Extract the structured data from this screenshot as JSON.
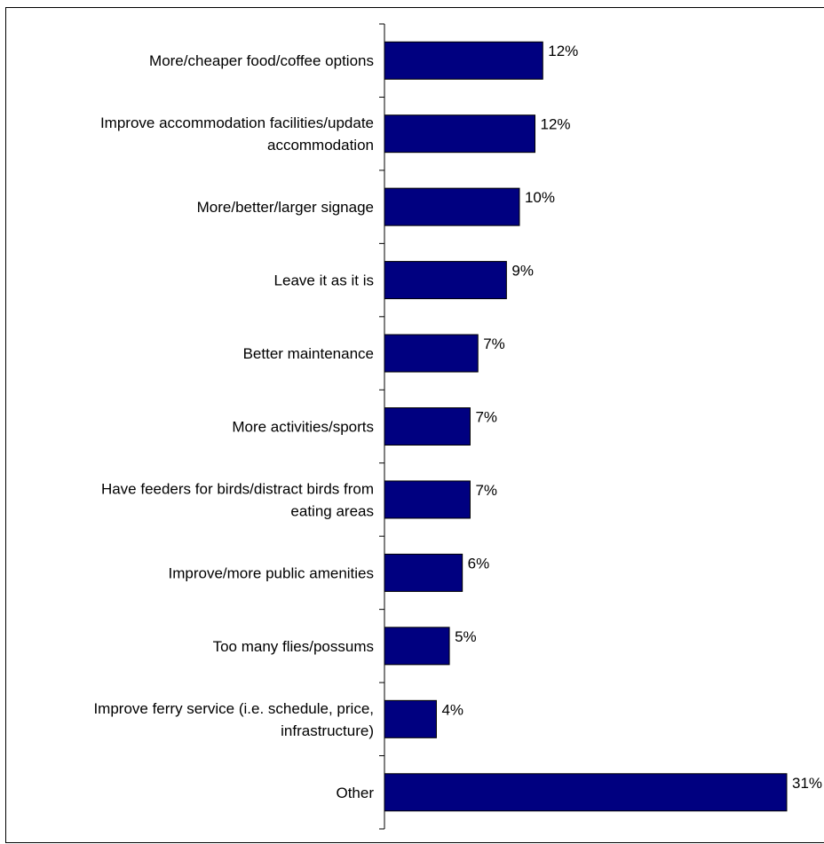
{
  "chart_data": {
    "type": "bar",
    "orientation": "horizontal",
    "categories": [
      [
        "More/cheaper food/coffee options"
      ],
      [
        "Improve accommodation facilities/update",
        "accommodation"
      ],
      [
        "More/better/larger signage"
      ],
      [
        "Leave it as it is"
      ],
      [
        "Better maintenance"
      ],
      [
        "More activities/sports"
      ],
      [
        "Have feeders for birds/distract birds from",
        "eating areas"
      ],
      [
        "Improve/more public amenities"
      ],
      [
        "Too many flies/possums"
      ],
      [
        "Improve ferry service (i.e. schedule, price,",
        "infrastructure)"
      ],
      [
        "Other"
      ]
    ],
    "values": [
      12.2,
      11.6,
      10.4,
      9.4,
      7.2,
      6.6,
      6.6,
      6.0,
      5.0,
      4.0,
      31.0
    ],
    "value_labels": [
      "12%",
      "12%",
      "10%",
      "9%",
      "7%",
      "7%",
      "7%",
      "6%",
      "5%",
      "4%",
      "31%"
    ],
    "xlim": [
      0,
      31.0
    ],
    "bar_color": "#000080",
    "grid": false,
    "legend": "none"
  }
}
